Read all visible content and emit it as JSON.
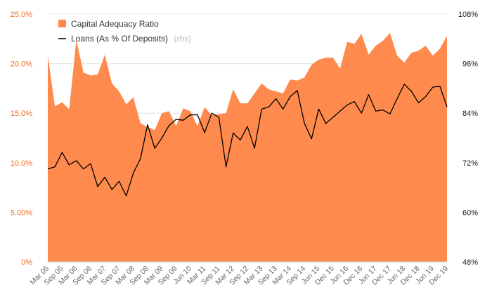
{
  "chart_data": {
    "type": "area+line",
    "colors": {
      "area": "#ff8a4d",
      "line": "#000000",
      "left_axis": "#f26b21",
      "right_axis": "#222222",
      "x_axis": "#666666"
    },
    "legend": [
      {
        "label": "Capital Adequacy Ratio",
        "suffix": "",
        "color": "#ff8a4d"
      },
      {
        "label": "Loans (As % Of Deposits)",
        "suffix": "(rhs)",
        "color": "#000000"
      }
    ],
    "y_left": {
      "min": 0,
      "max": 25,
      "ticks": [
        0,
        5,
        10,
        15,
        20,
        25
      ],
      "tick_labels": [
        "0%",
        "5.00%",
        "10.0%",
        "15.0%",
        "20.0%",
        "25.0%"
      ]
    },
    "y_right": {
      "min": 48,
      "max": 108,
      "ticks": [
        48,
        60,
        72,
        84,
        96,
        108
      ],
      "tick_labels": [
        "48%",
        "60%",
        "72%",
        "84%",
        "96%",
        "108%"
      ]
    },
    "x_tick_labels": [
      "Mar 05",
      "Sep 05",
      "Mar 06",
      "Sep 06",
      "Mar 07",
      "Sep 07",
      "Mar 08",
      "Sep 08",
      "Mar 09",
      "Sep 09",
      "Jun 10",
      "Mar 11",
      "Sep 11",
      "Mar 12",
      "Sep 12",
      "Mar 13",
      "Sep 13",
      "Mar 14",
      "Sep 14",
      "Jun 15",
      "Dec 15",
      "Jun 16",
      "Dec 16",
      "Jun 17",
      "Dec 17",
      "Jun 18",
      "Dec 18",
      "Jun 19",
      "Dec 19"
    ],
    "series": [
      {
        "name": "Capital Adequacy Ratio",
        "type": "area",
        "axis": "left",
        "values": [
          20.8,
          15.7,
          16.1,
          15.4,
          22.4,
          19.1,
          18.8,
          18.9,
          20.9,
          18.0,
          17.2,
          15.9,
          16.6,
          14.0,
          13.6,
          13.3,
          15.0,
          15.2,
          13.7,
          15.5,
          15.2,
          13.7,
          15.6,
          14.8,
          14.9,
          15.0,
          17.4,
          16.0,
          16.0,
          17.0,
          18.0,
          17.4,
          17.2,
          17.0,
          18.4,
          18.3,
          18.6,
          19.9,
          20.4,
          20.6,
          20.6,
          19.5,
          22.2,
          22.0,
          23.0,
          20.9,
          21.8,
          22.3,
          23.1,
          20.8,
          20.1,
          21.1,
          21.3,
          21.8,
          20.8,
          21.5,
          22.8
        ]
      },
      {
        "name": "Loans (As % Of Deposits)",
        "type": "line",
        "axis": "right",
        "values": [
          70.5,
          71.0,
          74.5,
          71.5,
          72.5,
          70.5,
          71.8,
          66.2,
          68.5,
          65.5,
          67.5,
          64.0,
          69.5,
          73.0,
          81.2,
          75.5,
          78.0,
          81.0,
          82.5,
          82.3,
          83.6,
          83.6,
          79.3,
          84.0,
          83.0,
          71.0,
          79.2,
          77.5,
          80.8,
          75.5,
          85.0,
          85.5,
          87.5,
          85.0,
          88.0,
          89.5,
          81.5,
          77.8,
          85.0,
          81.5,
          83.0,
          84.5,
          86.0,
          86.8,
          84.0,
          88.5,
          84.5,
          84.8,
          83.8,
          87.5,
          91.0,
          89.3,
          86.5,
          88.0,
          90.3,
          90.5,
          85.5
        ]
      }
    ]
  }
}
